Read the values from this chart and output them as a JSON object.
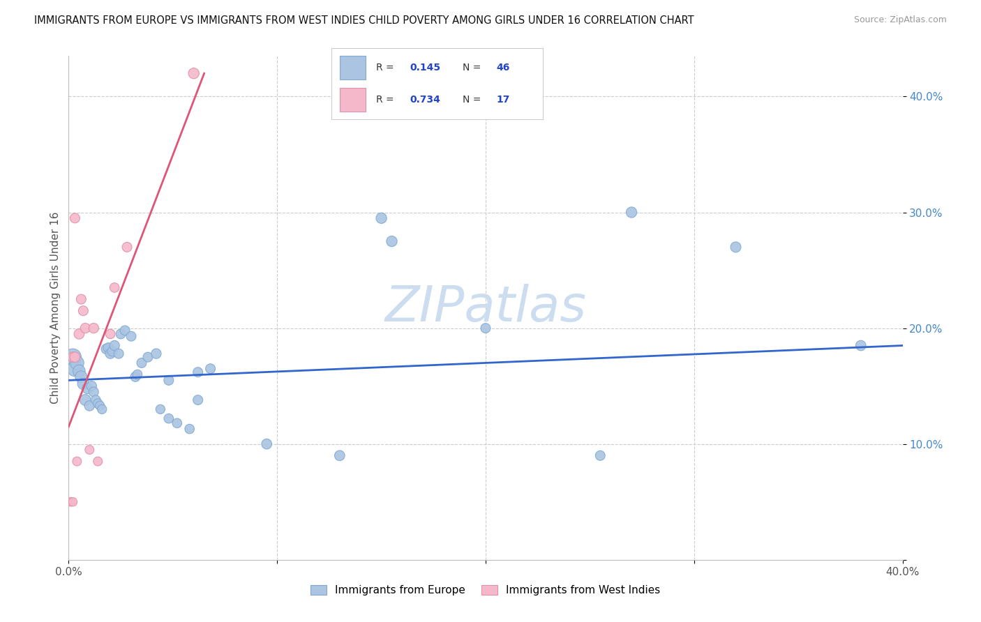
{
  "title": "IMMIGRANTS FROM EUROPE VS IMMIGRANTS FROM WEST INDIES CHILD POVERTY AMONG GIRLS UNDER 16 CORRELATION CHART",
  "source": "Source: ZipAtlas.com",
  "ylabel": "Child Poverty Among Girls Under 16",
  "blue_label": "Immigrants from Europe",
  "pink_label": "Immigrants from West Indies",
  "blue_R": "0.145",
  "blue_N": "46",
  "pink_R": "0.734",
  "pink_N": "17",
  "blue_color": "#aac4e2",
  "blue_line_color": "#3366cc",
  "pink_color": "#f5b8cb",
  "pink_line_color": "#e05575",
  "blue_dot_edge": "#80aad4",
  "pink_dot_edge": "#e090a8",
  "legend_color": "#2244cc",
  "watermark": "ZIPatlas",
  "watermark_color": "#ccddf0",
  "background_color": "#ffffff",
  "grid_color": "#cccccc",
  "ytick_color": "#4488cc",
  "blue_x": [
    0.002,
    0.003,
    0.004,
    0.005,
    0.006,
    0.007,
    0.008,
    0.009,
    0.01,
    0.011,
    0.012,
    0.013,
    0.014,
    0.015,
    0.016,
    0.018,
    0.019,
    0.02,
    0.021,
    0.022,
    0.024,
    0.025,
    0.027,
    0.03,
    0.032,
    0.033,
    0.035,
    0.038,
    0.042,
    0.044,
    0.048,
    0.052,
    0.058,
    0.062,
    0.068,
    0.095,
    0.13,
    0.155,
    0.2,
    0.255,
    0.32,
    0.38,
    0.15,
    0.27,
    0.048,
    0.062
  ],
  "blue_y": [
    0.175,
    0.165,
    0.17,
    0.163,
    0.158,
    0.152,
    0.138,
    0.148,
    0.133,
    0.15,
    0.145,
    0.138,
    0.135,
    0.133,
    0.13,
    0.182,
    0.183,
    0.178,
    0.18,
    0.185,
    0.178,
    0.195,
    0.198,
    0.193,
    0.158,
    0.16,
    0.17,
    0.175,
    0.178,
    0.13,
    0.122,
    0.118,
    0.113,
    0.162,
    0.165,
    0.1,
    0.09,
    0.275,
    0.2,
    0.09,
    0.27,
    0.185,
    0.295,
    0.3,
    0.155,
    0.138
  ],
  "blue_size": [
    300,
    250,
    200,
    160,
    150,
    140,
    130,
    120,
    110,
    105,
    100,
    95,
    95,
    90,
    90,
    105,
    105,
    105,
    105,
    105,
    100,
    100,
    100,
    100,
    100,
    95,
    100,
    100,
    105,
    90,
    95,
    95,
    95,
    100,
    100,
    110,
    110,
    120,
    100,
    100,
    115,
    110,
    120,
    120,
    100,
    100
  ],
  "pink_x": [
    0.001,
    0.002,
    0.003,
    0.004,
    0.005,
    0.006,
    0.007,
    0.008,
    0.01,
    0.012,
    0.014,
    0.02,
    0.022,
    0.028,
    0.002,
    0.003,
    0.06
  ],
  "pink_y": [
    0.05,
    0.05,
    0.295,
    0.085,
    0.195,
    0.225,
    0.215,
    0.2,
    0.095,
    0.2,
    0.085,
    0.195,
    0.235,
    0.27,
    0.175,
    0.175,
    0.42
  ],
  "pink_size": [
    80,
    80,
    100,
    85,
    110,
    100,
    100,
    105,
    85,
    105,
    85,
    95,
    95,
    100,
    110,
    110,
    120
  ],
  "blue_trend": [
    0.0,
    0.4,
    0.155,
    0.185
  ],
  "pink_trend": [
    0.0,
    0.065,
    0.115,
    0.42
  ],
  "xlim": [
    0.0,
    0.4
  ],
  "ylim": [
    0.0,
    0.435
  ],
  "yticks": [
    0.0,
    0.1,
    0.2,
    0.3,
    0.4
  ],
  "ytick_labels": [
    "",
    "10.0%",
    "20.0%",
    "30.0%",
    "40.0%"
  ],
  "xticks": [
    0.0,
    0.1,
    0.2,
    0.3,
    0.4
  ],
  "xtick_labels": [
    "0.0%",
    "",
    "",
    "",
    "40.0%"
  ]
}
